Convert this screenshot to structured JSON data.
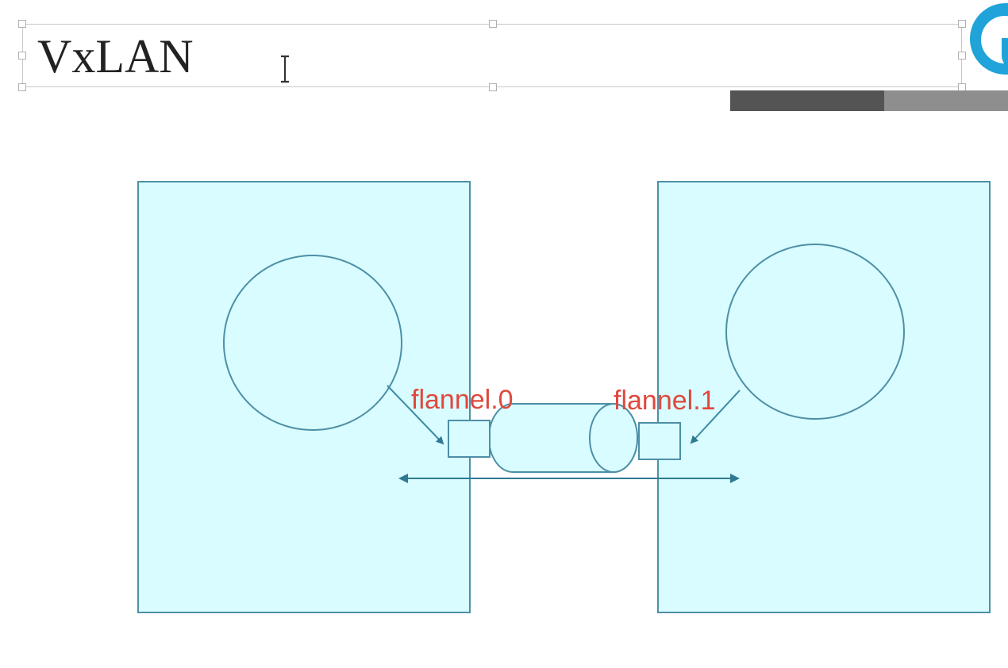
{
  "slide": {
    "title": "VxLAN"
  },
  "diagram": {
    "labels": {
      "left_interface": "flannel.0",
      "right_interface": "flannel.1"
    },
    "colors": {
      "box_fill": "#d8fcff",
      "stroke": "#4e8fa6",
      "label": "#e0483c",
      "arrow": "#2f7a92"
    }
  },
  "branding": {
    "logo_icon": "logo-circle-icon",
    "accent": "#1fa3d8"
  }
}
